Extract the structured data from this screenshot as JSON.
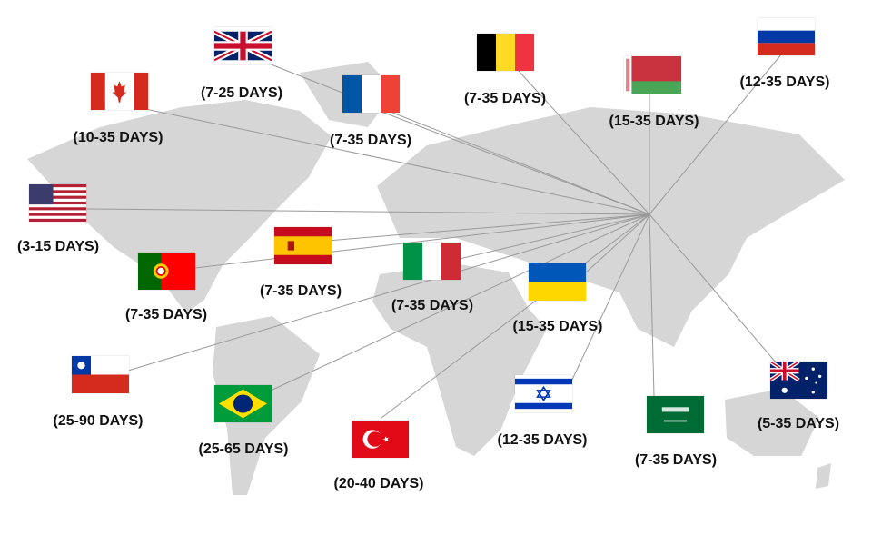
{
  "colors": {
    "map": "#d6d6d6",
    "lines": "#9a9a9a",
    "text": "#111111"
  },
  "destinations": [
    {
      "flag": "uk-flag",
      "days": "(7-25 DAYS)"
    },
    {
      "flag": "canada-flag",
      "days": "(10-35 DAYS)"
    },
    {
      "flag": "france-flag",
      "days": "(7-35 DAYS)"
    },
    {
      "flag": "belgium-flag",
      "days": "(7-35 DAYS)"
    },
    {
      "flag": "belarus-flag",
      "days": "(15-35 DAYS)"
    },
    {
      "flag": "russia-flag",
      "days": "(12-35 DAYS)"
    },
    {
      "flag": "usa-flag",
      "days": "(3-15 DAYS)"
    },
    {
      "flag": "spain-flag",
      "days": "(7-35 DAYS)"
    },
    {
      "flag": "portugal-flag",
      "days": "(7-35 DAYS)"
    },
    {
      "flag": "italy-flag",
      "days": "(7-35 DAYS)"
    },
    {
      "flag": "ukraine-flag",
      "days": "(15-35 DAYS)"
    },
    {
      "flag": "chile-flag",
      "days": "(25-90 DAYS)"
    },
    {
      "flag": "brazil-flag",
      "days": "(25-65 DAYS)"
    },
    {
      "flag": "turkey-flag",
      "days": "(20-40 DAYS)"
    },
    {
      "flag": "israel-flag",
      "days": "(12-35 DAYS)"
    },
    {
      "flag": "saudi-arabia-flag",
      "days": "(7-35 DAYS)"
    },
    {
      "flag": "australia-flag",
      "days": "(5-35 DAYS)"
    }
  ]
}
